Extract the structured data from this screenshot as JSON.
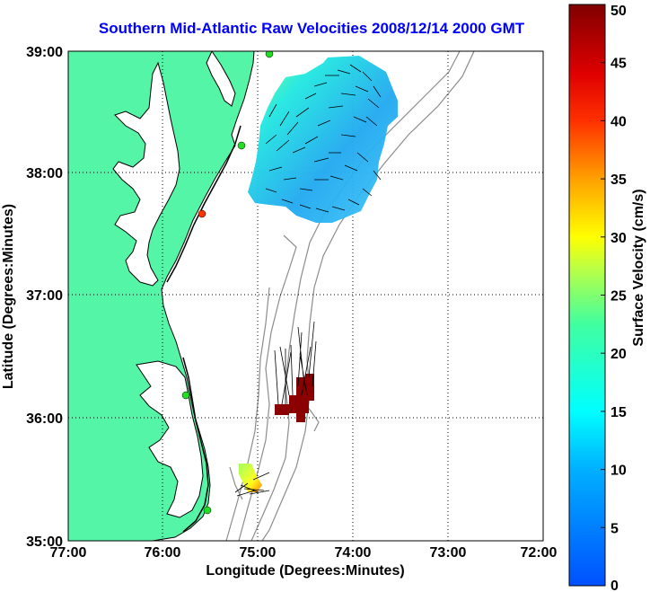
{
  "title": "Southern Mid-Atlantic Raw Velocities 2008/12/14 2000 GMT",
  "axes": {
    "xlabel": "Longitude (Degrees:Minutes)",
    "ylabel": "Latitude (Degrees:Minutes)",
    "xticks": [
      "77:00",
      "76:00",
      "75:00",
      "74:00",
      "73:00",
      "72:00"
    ],
    "yticks": [
      "39:00",
      "38:00",
      "37:00",
      "36:00",
      "35:00"
    ],
    "xlim": [
      -77,
      -72
    ],
    "ylim": [
      35,
      39
    ]
  },
  "colorbar": {
    "label": "Surface Velocity (cm/s)",
    "ticks": [
      "0",
      "5",
      "10",
      "15",
      "20",
      "25",
      "30",
      "35",
      "40",
      "45",
      "50"
    ],
    "range": [
      0,
      50
    ]
  },
  "colors": {
    "land": "#55f5a8",
    "coast_line": "#000000",
    "bathymetry": "#808080",
    "grid": "#000000",
    "title": "#0000ff",
    "station": "#22dd22",
    "station_red": "#ff3300"
  },
  "chart_data": {
    "type": "heatmap",
    "regions": [
      {
        "name": "northern velocity field",
        "lon": [
          -75.2,
          -74.4
        ],
        "lat": [
          37.6,
          38.9
        ],
        "speed_cm_s": [
          5,
          20
        ]
      },
      {
        "name": "hatteras high-speed patch",
        "lon": [
          -74.7,
          -74.35
        ],
        "lat": [
          36.0,
          36.35
        ],
        "speed_cm_s": 50
      },
      {
        "name": "southern small field",
        "lon": [
          -75.2,
          -74.9
        ],
        "lat": [
          35.4,
          35.6
        ],
        "speed_cm_s": [
          18,
          35
        ]
      }
    ],
    "stations": [
      {
        "lon": -74.9,
        "lat": 38.98,
        "color": "green"
      },
      {
        "lon": -75.15,
        "lat": 38.2,
        "color": "green"
      },
      {
        "lon": -75.55,
        "lat": 37.75,
        "color": "red"
      },
      {
        "lon": -75.7,
        "lat": 36.18,
        "color": "green"
      },
      {
        "lon": -75.5,
        "lat": 35.27,
        "color": "green"
      }
    ]
  }
}
